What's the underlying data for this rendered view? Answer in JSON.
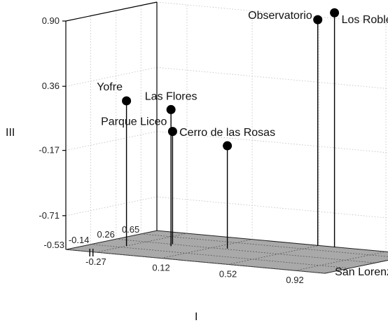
{
  "chart_data": {
    "type": "scatter",
    "projection": "3d",
    "title": "",
    "xlabel": "I",
    "ylabel": "II",
    "zlabel": "III",
    "x_ticks": [
      -0.27,
      0.12,
      0.52,
      0.92
    ],
    "y_ticks": [
      -0.53,
      -0.14,
      0.26,
      0.65
    ],
    "z_ticks": [
      -0.71,
      -0.17,
      0.36,
      0.9
    ],
    "x_tick_labels": [
      "-0.27",
      "0.12",
      "0.52",
      "0.92"
    ],
    "y_tick_labels": [
      "-0.53",
      "-0.14",
      "0.26",
      "0.65"
    ],
    "z_tick_labels": [
      "-0.71",
      "-0.17",
      "0.36",
      "0.90"
    ],
    "xlim": [
      -0.45,
      1.1
    ],
    "ylim": [
      -0.53,
      0.9
    ],
    "zlim": [
      -1.25,
      0.9
    ],
    "grid": true,
    "points": [
      {
        "label": "Yofre",
        "x": -0.27,
        "y": -0.05,
        "z": 0.21
      },
      {
        "label": "Las Flores",
        "x": -0.08,
        "y": 0.15,
        "z": 0.14
      },
      {
        "label": "Parque Liceo",
        "x": -0.12,
        "y": 0.28,
        "z": -0.06
      },
      {
        "label": "Cerro de las Rosas",
        "x": 0.2,
        "y": 0.3,
        "z": -0.14
      },
      {
        "label": "Observatorio",
        "x": 0.52,
        "y": 0.88,
        "z": 0.88
      },
      {
        "label": "Los Robles",
        "x": 0.62,
        "y": 0.88,
        "z": 0.95
      },
      {
        "label": "San Lorenzo",
        "x": 1.1,
        "y": 0.58,
        "z": -1.21
      }
    ]
  }
}
